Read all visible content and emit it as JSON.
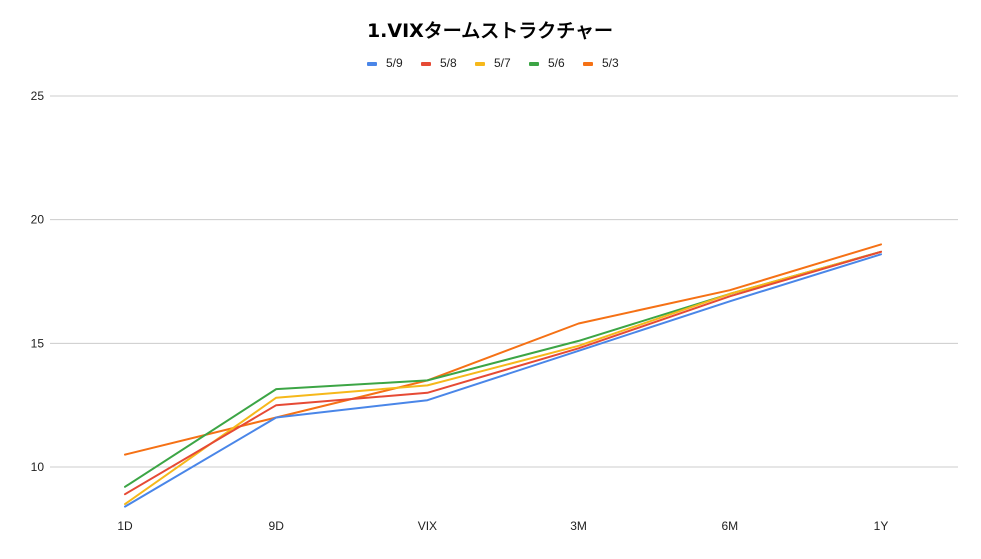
{
  "chart_data": {
    "type": "line",
    "title": "1.VIXタームストラクチャー",
    "xlabel": "",
    "ylabel": "",
    "categories": [
      "1D",
      "9D",
      "VIX",
      "3M",
      "6M",
      "1Y"
    ],
    "ylim": [
      8,
      25
    ],
    "yticks": [
      10,
      15,
      20,
      25
    ],
    "grid": true,
    "legend": "top",
    "series": [
      {
        "name": "5/9",
        "color": "#4a86e8",
        "values": [
          8.4,
          12.0,
          12.7,
          14.7,
          16.7,
          18.6
        ]
      },
      {
        "name": "5/8",
        "color": "#e64a35",
        "values": [
          8.9,
          12.5,
          13.0,
          14.8,
          16.9,
          18.7
        ]
      },
      {
        "name": "5/7",
        "color": "#f6b81a",
        "values": [
          8.5,
          12.8,
          13.3,
          14.9,
          17.0,
          18.7
        ]
      },
      {
        "name": "5/6",
        "color": "#3ca545",
        "values": [
          9.2,
          13.15,
          13.5,
          15.1,
          17.0,
          18.7
        ]
      },
      {
        "name": "5/3",
        "color": "#f57115",
        "values": [
          10.5,
          12.0,
          13.5,
          15.8,
          17.15,
          19.0
        ]
      }
    ]
  }
}
